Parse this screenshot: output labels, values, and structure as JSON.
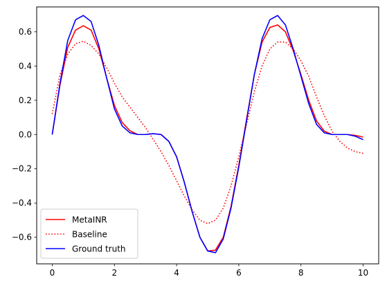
{
  "chart_data": {
    "type": "line",
    "title": "",
    "xlabel": "",
    "ylabel": "",
    "xlim": [
      -0.5,
      10.5
    ],
    "ylim": [
      -0.755,
      0.745
    ],
    "xticks": [
      0,
      2,
      4,
      6,
      8,
      10
    ],
    "yticks": [
      -0.6,
      -0.4,
      -0.2,
      0.0,
      0.2,
      0.4,
      0.6
    ],
    "xtick_labels": [
      "0",
      "2",
      "4",
      "6",
      "8",
      "10"
    ],
    "ytick_labels": [
      "−0.6",
      "−0.4",
      "−0.2",
      "0.0",
      "0.2",
      "0.4",
      "0.6"
    ],
    "grid": false,
    "legend_position": "lower-left",
    "series": [
      {
        "name": "MetaINR",
        "color": "#ff0000",
        "style": "solid",
        "x": [
          0,
          0.25,
          0.5,
          0.75,
          1.0,
          1.25,
          1.5,
          1.75,
          2.0,
          2.25,
          2.5,
          2.75,
          3.0,
          3.25,
          3.5,
          3.75,
          4.0,
          4.25,
          4.5,
          4.75,
          5.0,
          5.25,
          5.5,
          5.75,
          6.0,
          6.25,
          6.5,
          6.75,
          7.0,
          7.25,
          7.5,
          7.75,
          8.0,
          8.25,
          8.5,
          8.75,
          9.0,
          9.25,
          9.5,
          9.75,
          10.0
        ],
        "y": [
          0.0,
          0.29,
          0.51,
          0.61,
          0.635,
          0.61,
          0.5,
          0.33,
          0.17,
          0.07,
          0.022,
          0.0,
          0.0,
          0.005,
          0.0,
          -0.04,
          -0.13,
          -0.28,
          -0.45,
          -0.6,
          -0.68,
          -0.675,
          -0.6,
          -0.42,
          -0.18,
          0.09,
          0.35,
          0.54,
          0.625,
          0.64,
          0.6,
          0.49,
          0.35,
          0.2,
          0.08,
          0.02,
          0.0,
          0.0,
          0.0,
          -0.005,
          -0.015
        ]
      },
      {
        "name": "Baseline",
        "color": "#ff0000",
        "style": "dotted",
        "x": [
          0,
          0.25,
          0.5,
          0.75,
          1.0,
          1.25,
          1.5,
          1.75,
          2.0,
          2.25,
          2.5,
          2.75,
          3.0,
          3.25,
          3.5,
          3.75,
          4.0,
          4.25,
          4.5,
          4.75,
          5.0,
          5.25,
          5.5,
          5.75,
          6.0,
          6.25,
          6.5,
          6.75,
          7.0,
          7.25,
          7.5,
          7.75,
          8.0,
          8.25,
          8.5,
          8.75,
          9.0,
          9.25,
          9.5,
          9.75,
          10.0
        ],
        "y": [
          0.12,
          0.35,
          0.47,
          0.53,
          0.545,
          0.52,
          0.47,
          0.39,
          0.3,
          0.22,
          0.16,
          0.1,
          0.04,
          -0.03,
          -0.1,
          -0.18,
          -0.27,
          -0.36,
          -0.44,
          -0.5,
          -0.52,
          -0.5,
          -0.43,
          -0.3,
          -0.13,
          0.06,
          0.25,
          0.4,
          0.5,
          0.54,
          0.54,
          0.5,
          0.43,
          0.34,
          0.22,
          0.11,
          0.02,
          -0.04,
          -0.08,
          -0.1,
          -0.11
        ]
      },
      {
        "name": "Ground truth",
        "color": "#0000ff",
        "style": "solid",
        "x": [
          0,
          0.25,
          0.5,
          0.75,
          1.0,
          1.25,
          1.5,
          1.75,
          2.0,
          2.25,
          2.5,
          2.75,
          3.0,
          3.25,
          3.5,
          3.75,
          4.0,
          4.25,
          4.5,
          4.75,
          5.0,
          5.25,
          5.5,
          5.75,
          6.0,
          6.25,
          6.5,
          6.75,
          7.0,
          7.25,
          7.5,
          7.75,
          8.0,
          8.25,
          8.5,
          8.75,
          9.0,
          9.25,
          9.5,
          9.75,
          10.0
        ],
        "y": [
          0.0,
          0.3,
          0.55,
          0.67,
          0.695,
          0.66,
          0.52,
          0.33,
          0.15,
          0.05,
          0.01,
          0.0,
          0.0,
          0.005,
          0.0,
          -0.04,
          -0.13,
          -0.28,
          -0.45,
          -0.6,
          -0.68,
          -0.69,
          -0.61,
          -0.43,
          -0.19,
          0.08,
          0.35,
          0.56,
          0.67,
          0.695,
          0.64,
          0.5,
          0.34,
          0.18,
          0.06,
          0.01,
          0.0,
          0.0,
          0.0,
          -0.01,
          -0.03
        ]
      }
    ]
  }
}
